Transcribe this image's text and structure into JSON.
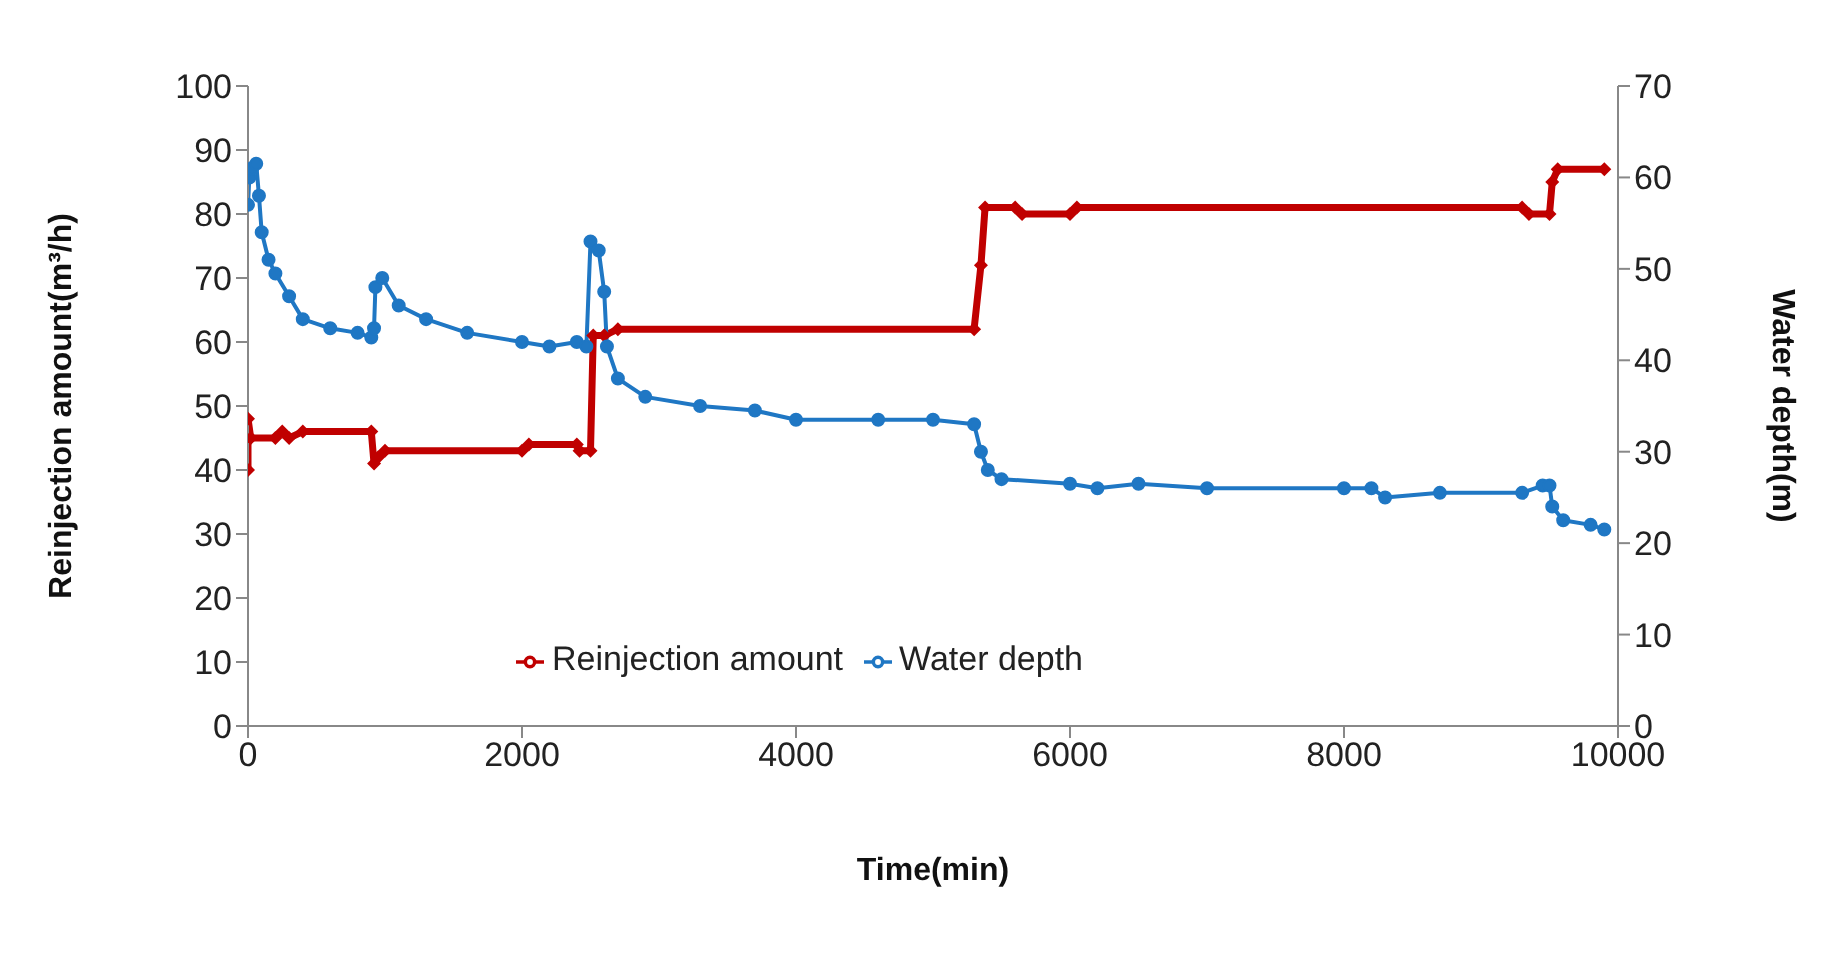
{
  "chart_data": {
    "type": "line",
    "xlabel": "Time(min)",
    "ylabel": "Reinjection amount(m³/h)",
    "y2label": "Water depth(m)",
    "xlim": [
      0,
      10000
    ],
    "xticks": [
      0,
      2000,
      4000,
      6000,
      8000,
      10000
    ],
    "ylim": [
      0,
      100
    ],
    "yticks": [
      0,
      10,
      20,
      30,
      40,
      50,
      60,
      70,
      80,
      90,
      100
    ],
    "y2lim": [
      0,
      70
    ],
    "y2ticks": [
      0,
      10,
      20,
      30,
      40,
      50,
      60,
      70
    ],
    "legend": "bottom",
    "line_style": "solid",
    "series": [
      {
        "name": "Reinjection amount",
        "color": "#c00000",
        "marker": "diamond",
        "x": [
          0,
          0,
          20,
          200,
          250,
          300,
          400,
          900,
          920,
          950,
          1000,
          2000,
          2050,
          2400,
          2420,
          2500,
          2520,
          2600,
          2700,
          5300,
          5350,
          5380,
          5600,
          5650,
          6000,
          6050,
          9300,
          9350,
          9500,
          9520,
          9560,
          9900
        ],
        "values": [
          40,
          48,
          45,
          45,
          46,
          45,
          46,
          46,
          41,
          42,
          43,
          43,
          44,
          44,
          43,
          43,
          61,
          61,
          62,
          62,
          72,
          81,
          81,
          80,
          80,
          81,
          81,
          80,
          80,
          85,
          87,
          87
        ]
      },
      {
        "name": "Water depth",
        "color": "#1f77c4",
        "marker": "circle",
        "axis": "y2",
        "x": [
          0,
          10,
          30,
          60,
          80,
          100,
          150,
          200,
          300,
          400,
          600,
          800,
          900,
          920,
          930,
          980,
          1100,
          1300,
          1600,
          2000,
          2200,
          2400,
          2470,
          2500,
          2560,
          2600,
          2620,
          2700,
          2900,
          3300,
          3700,
          4000,
          4600,
          5000,
          5300,
          5350,
          5400,
          5500,
          6000,
          6200,
          6500,
          7000,
          8000,
          8200,
          8300,
          8700,
          9300,
          9450,
          9500,
          9520,
          9600,
          9800,
          9900
        ],
        "values": [
          57,
          60,
          61,
          61.5,
          58,
          54,
          51,
          49.5,
          47,
          44.5,
          43.5,
          43,
          42.5,
          43.5,
          48,
          49,
          46,
          44.5,
          43,
          42,
          41.5,
          42,
          41.5,
          53,
          52,
          47.5,
          41.5,
          38,
          36,
          35,
          34.5,
          33.5,
          33.5,
          33.5,
          33,
          30,
          28,
          27,
          26.5,
          26,
          26.5,
          26,
          26,
          26,
          25,
          25.5,
          25.5,
          26.3,
          26.3,
          24,
          22.5,
          22,
          21.5
        ]
      }
    ]
  }
}
